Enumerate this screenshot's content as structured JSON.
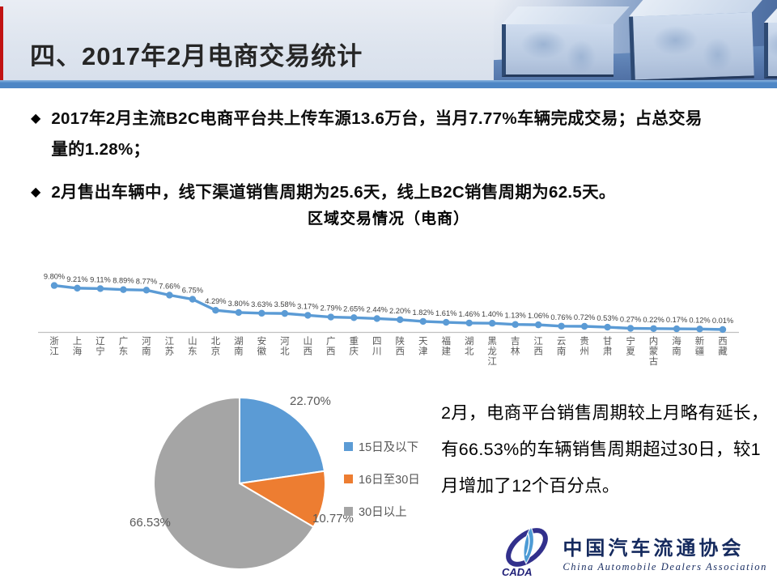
{
  "slide": {
    "title": "四、2017年2月电商交易统计",
    "bullet_marker": "◆",
    "bullets": [
      "2017年2月主流B2C电商平台共上传车源13.6万台，当月7.77%车辆完成交易；占总交易量的1.28%；",
      "2月售出车辆中，线下渠道销售周期为25.6天，线上B2C销售周期为62.5天。"
    ],
    "commentary": "2月，电商平台销售周期较上月略有延长，有66.53%的车辆销售周期超过30日，较1月增加了12个百分点。"
  },
  "chart_data": [
    {
      "type": "line",
      "title": "区域交易情况（电商）",
      "categories": [
        "浙江",
        "上海",
        "辽宁",
        "广东",
        "河南",
        "江苏",
        "山东",
        "北京",
        "湖南",
        "安徽",
        "河北",
        "山西",
        "广西",
        "重庆",
        "四川",
        "陕西",
        "天津",
        "福建",
        "湖北",
        "黑龙江",
        "吉林",
        "江西",
        "云南",
        "贵州",
        "甘肃",
        "宁夏",
        "内蒙古",
        "海南",
        "新疆",
        "西藏"
      ],
      "values": [
        9.8,
        9.21,
        9.11,
        8.89,
        8.77,
        7.66,
        6.75,
        4.29,
        3.8,
        3.63,
        3.58,
        3.17,
        2.79,
        2.65,
        2.44,
        2.2,
        1.82,
        1.61,
        1.46,
        1.4,
        1.13,
        1.06,
        0.76,
        0.72,
        0.53,
        0.27,
        0.22,
        0.17,
        0.12,
        0.01
      ],
      "unit": "%",
      "ylim": [
        0,
        10
      ],
      "grid": false,
      "legend": "none",
      "line_color": "#5B9BD5",
      "marker_color": "#5B9BD5",
      "axis_color": "#C0C0C0",
      "label_color": "#3F3F3F",
      "category_color": "#595959"
    },
    {
      "type": "pie",
      "labels": [
        "15日及以下",
        "16日至30日",
        "30日以上"
      ],
      "values": [
        22.7,
        10.77,
        66.53
      ],
      "display_values": [
        "22.70%",
        "10.77%",
        "66.53%"
      ],
      "colors": [
        "#5B9BD5",
        "#ED7D31",
        "#A5A5A5"
      ],
      "start_angle_deg": -90,
      "direction": "clockwise",
      "legend_position": "right"
    }
  ],
  "logo": {
    "abbr": "CADA",
    "name_cn": "中国汽车流通协会",
    "name_en": "China Automobile Dealers Association"
  },
  "colors": {
    "accent_bar": "#C11212",
    "header_rule": "#4D86C5",
    "header_bg": "#DDE4EE"
  }
}
